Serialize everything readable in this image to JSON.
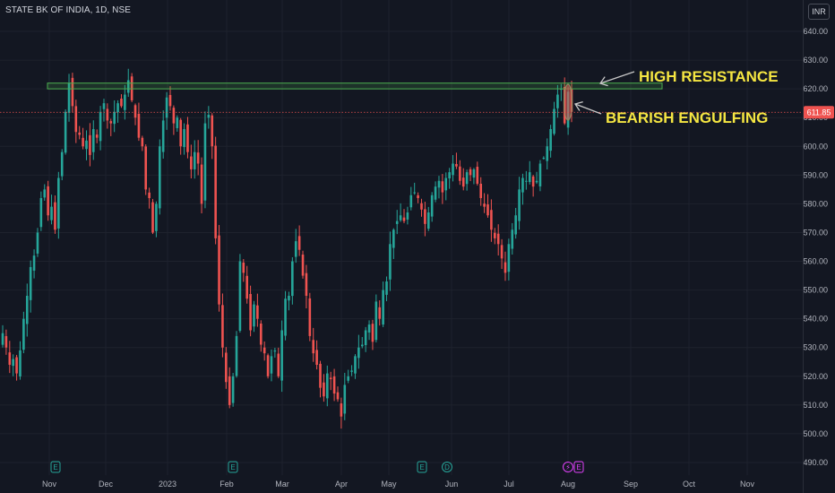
{
  "header": {
    "symbol_title": "STATE BK OF INDIA, 1D, NSE",
    "currency": "INR"
  },
  "colors": {
    "background": "#131722",
    "up": "#26a69a",
    "down": "#ef5350",
    "resistance": "#4caf50",
    "annotation_text": "#f5e642",
    "price_line": "#ef5350"
  },
  "chart_data": {
    "type": "candlestick",
    "title": "STATE BK OF INDIA, 1D, NSE",
    "x_tick_labels": [
      "Nov",
      "Dec",
      "2023",
      "Feb",
      "Mar",
      "Apr",
      "May",
      "Jun",
      "Jul",
      "Aug",
      "Sep",
      "Oct",
      "Nov"
    ],
    "y_tick_labels": [
      640,
      630,
      620,
      610,
      600,
      590,
      580,
      570,
      560,
      550,
      540,
      530,
      520,
      510,
      500,
      490
    ],
    "ylim": [
      487,
      645
    ],
    "last_price": "611.85",
    "resistance_level": [
      620,
      622
    ],
    "annotations": [
      {
        "text": "HIGH RESISTANCE"
      },
      {
        "text": "BEARISH ENGULFING"
      }
    ],
    "event_markers": [
      {
        "label": "E",
        "at": "Nov"
      },
      {
        "label": "E",
        "at": "Feb"
      },
      {
        "label": "E",
        "at": "May"
      },
      {
        "label": "D",
        "at": "May"
      },
      {
        "label": "E",
        "at": "Aug"
      }
    ],
    "closes": [
      535,
      530,
      524,
      526,
      521,
      529,
      540,
      548,
      558,
      562,
      570,
      582,
      585,
      576,
      579,
      571,
      589,
      598,
      612,
      622,
      614,
      605,
      604,
      600,
      602,
      597,
      606,
      603,
      612,
      615,
      609,
      608,
      612,
      615,
      614,
      618,
      623,
      616,
      610,
      603,
      600,
      585,
      582,
      570,
      580,
      600,
      609,
      617,
      614,
      608,
      610,
      600,
      606,
      598,
      592,
      598,
      594,
      580,
      608,
      611,
      600,
      568,
      545,
      530,
      518,
      510,
      520,
      534,
      560,
      556,
      547,
      536,
      545,
      540,
      531,
      528,
      520,
      527,
      529,
      520,
      536,
      547,
      548,
      560,
      567,
      564,
      555,
      548,
      534,
      528,
      524,
      516,
      513,
      521,
      519,
      514,
      512,
      506,
      517,
      520,
      522,
      527,
      530,
      531,
      536,
      538,
      532,
      546,
      540,
      550,
      553,
      566,
      571,
      574,
      576,
      574,
      577,
      583,
      584,
      582,
      578,
      573,
      577,
      583,
      586,
      588,
      584,
      589,
      591,
      594,
      593,
      588,
      586,
      591,
      590,
      592,
      587,
      582,
      579,
      576,
      571,
      568,
      566,
      561,
      556,
      566,
      571,
      576,
      585,
      589,
      588,
      591,
      586,
      588,
      594,
      596,
      600,
      606,
      613,
      618,
      620,
      608,
      619,
      612
    ],
    "ohlc_note": "closes are read from chart in INR, one per trading day Oct-2022 to Aug-2023"
  }
}
